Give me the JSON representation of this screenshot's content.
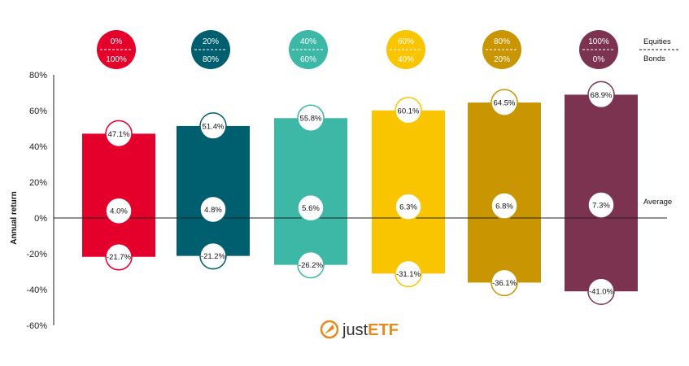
{
  "chart_data": {
    "type": "bar",
    "ylabel": "Annual return",
    "ylim": [
      -60,
      80
    ],
    "yticks": [
      80,
      60,
      40,
      20,
      0,
      -20,
      -40,
      -60
    ],
    "ytick_labels": [
      "80%",
      "60%",
      "40%",
      "20%",
      "0%",
      "-20%",
      "-40%",
      "-60%"
    ],
    "grid": false,
    "categories": [
      {
        "equities": "0%",
        "bonds": "100%",
        "max": 47.1,
        "avg": 4.0,
        "min": -21.7,
        "max_label": "47.1%",
        "avg_label": "4.0%",
        "min_label": "-21.7%",
        "color": "#e4002b"
      },
      {
        "equities": "20%",
        "bonds": "80%",
        "max": 51.4,
        "avg": 4.8,
        "min": -21.2,
        "max_label": "51.4%",
        "avg_label": "4.8%",
        "min_label": "-21.2%",
        "color": "#005f6e"
      },
      {
        "equities": "40%",
        "bonds": "60%",
        "max": 55.8,
        "avg": 5.6,
        "min": -26.2,
        "max_label": "55.8%",
        "avg_label": "5.6%",
        "min_label": "-26.2%",
        "color": "#3db8a6"
      },
      {
        "equities": "60%",
        "bonds": "40%",
        "max": 60.1,
        "avg": 6.3,
        "min": -31.1,
        "max_label": "60.1%",
        "avg_label": "6.3%",
        "min_label": "-31.1%",
        "color": "#f9c500"
      },
      {
        "equities": "80%",
        "bonds": "20%",
        "max": 64.5,
        "avg": 6.8,
        "min": -36.1,
        "max_label": "64.5%",
        "avg_label": "6.8%",
        "min_label": "-36.1%",
        "color": "#c99500"
      },
      {
        "equities": "100%",
        "bonds": "0%",
        "max": 68.9,
        "avg": 7.3,
        "min": -41.0,
        "max_label": "68.9%",
        "avg_label": "7.3%",
        "min_label": "-41.0%",
        "color": "#7b3350"
      }
    ],
    "legend": {
      "top": "Equities",
      "bottom": "Bonds",
      "average": "Average"
    }
  },
  "logo": {
    "prefix": "just",
    "suffix": "ETF",
    "brand_color": "#e68a1e"
  }
}
